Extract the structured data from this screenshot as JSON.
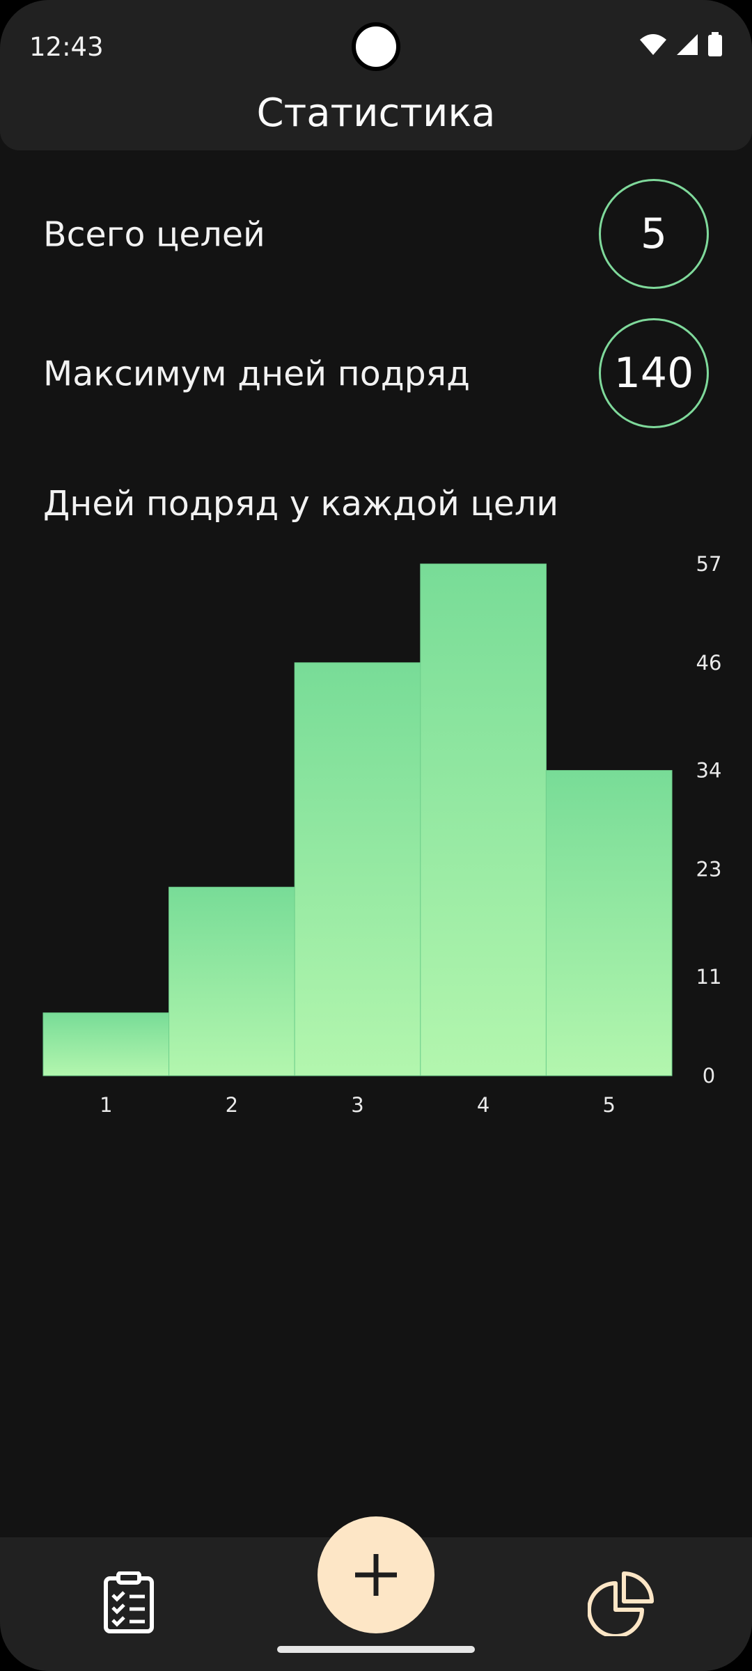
{
  "status_bar": {
    "time": "12:43"
  },
  "app_bar": {
    "title": "Статистика"
  },
  "summary": [
    {
      "label": "Всего целей",
      "value": "5"
    },
    {
      "label": "Максимум дней подряд",
      "value": "140"
    }
  ],
  "chart_section": {
    "title": "Дней подряд у каждой цели"
  },
  "chart_data": {
    "type": "bar",
    "categories": [
      "1",
      "2",
      "3",
      "4",
      "5"
    ],
    "values": [
      7,
      21,
      46,
      57,
      34
    ],
    "y_ticks": [
      "0",
      "11",
      "23",
      "34",
      "46",
      "57"
    ],
    "ylim": [
      0,
      57
    ],
    "y_axis_side": "right",
    "grid": false,
    "bar_gradient": [
      "#78dc97",
      "#b3f6ae"
    ]
  },
  "nav": {
    "left_icon": "clipboard-list-icon",
    "center_icon": "plus-icon",
    "right_icon": "pie-chart-icon"
  },
  "colors": {
    "accent": "#7fd99b",
    "fab": "#fde6c6",
    "nav_icon_right": "#fde6c6"
  }
}
